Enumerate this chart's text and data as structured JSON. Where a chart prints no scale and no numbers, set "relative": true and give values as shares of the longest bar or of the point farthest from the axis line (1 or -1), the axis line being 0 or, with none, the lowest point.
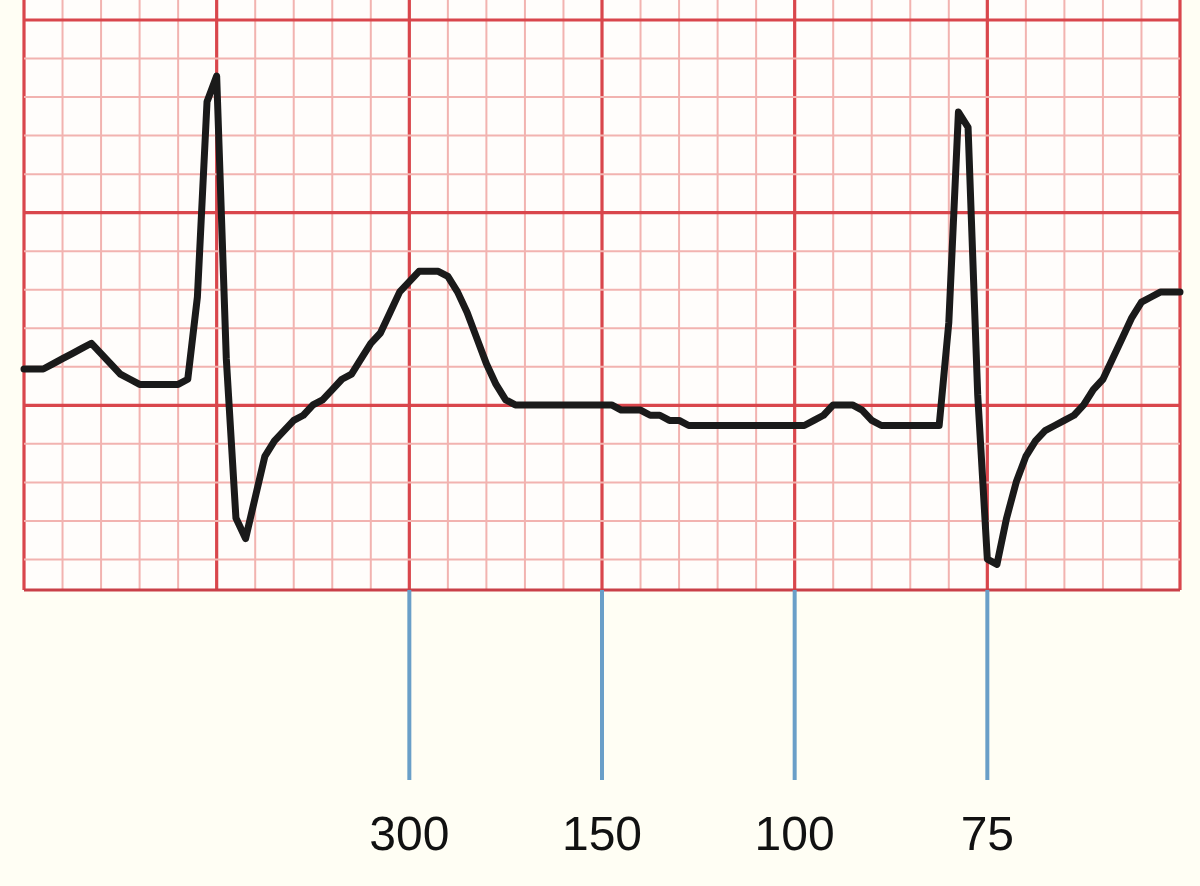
{
  "chart_data": {
    "type": "line",
    "relative": true,
    "grid": true,
    "color": "#1a1a1a",
    "categories": [
      null,
      null,
      null,
      null,
      null,
      null,
      null,
      null,
      null,
      null,
      null,
      null,
      null,
      null,
      null,
      null,
      null,
      null,
      null,
      null,
      null,
      null,
      null,
      null,
      null,
      null,
      null,
      null,
      null,
      null,
      null,
      null,
      null,
      null,
      null,
      null,
      null,
      null,
      null,
      null,
      "300",
      null,
      null,
      null,
      null,
      null,
      null,
      null,
      null,
      null,
      null,
      null,
      null,
      null,
      null,
      null,
      null,
      null,
      null,
      null,
      "150",
      null,
      null,
      null,
      null,
      null,
      null,
      null,
      null,
      null,
      null,
      null,
      null,
      null,
      null,
      null,
      null,
      null,
      null,
      null,
      "100",
      null,
      null,
      null,
      null,
      null,
      null,
      null,
      null,
      null,
      null,
      null,
      null,
      null,
      null,
      null,
      null,
      null,
      null,
      null,
      "75",
      null,
      null,
      null,
      null,
      null,
      null,
      null,
      null,
      null,
      null,
      null,
      null,
      null,
      null,
      null,
      null,
      null,
      null,
      null,
      null
    ],
    "values": [
      0.43,
      0.43,
      0.43,
      0.44,
      0.45,
      0.46,
      0.47,
      0.48,
      0.46,
      0.44,
      0.42,
      0.41,
      0.4,
      0.4,
      0.4,
      0.4,
      0.4,
      0.41,
      0.57,
      0.95,
      1,
      0.45,
      0.14,
      0.1,
      0.18,
      0.26,
      0.29,
      0.31,
      0.33,
      0.34,
      0.36,
      0.37,
      0.39,
      0.41,
      0.42,
      0.45,
      0.48,
      0.5,
      0.54,
      0.58,
      0.6,
      0.62,
      0.62,
      0.62,
      0.61,
      0.58,
      0.54,
      0.49,
      0.44,
      0.4,
      0.37,
      0.36,
      0.36,
      0.36,
      0.36,
      0.36,
      0.36,
      0.36,
      0.36,
      0.36,
      0.36,
      0.36,
      0.35,
      0.35,
      0.35,
      0.34,
      0.34,
      0.33,
      0.33,
      0.32,
      0.32,
      0.32,
      0.32,
      0.32,
      0.32,
      0.32,
      0.32,
      0.32,
      0.32,
      0.32,
      0.32,
      0.32,
      0.33,
      0.34,
      0.36,
      0.36,
      0.36,
      0.35,
      0.33,
      0.32,
      0.32,
      0.32,
      0.32,
      0.32,
      0.32,
      0.32,
      0.52,
      0.93,
      0.9,
      0.38,
      0.06,
      0.05,
      0.14,
      0.21,
      0.26,
      0.29,
      0.31,
      0.32,
      0.33,
      0.34,
      0.36,
      0.39,
      0.41,
      0.45,
      0.49,
      0.53,
      0.56,
      0.57,
      0.58,
      0.58,
      0.58
    ]
  }
}
